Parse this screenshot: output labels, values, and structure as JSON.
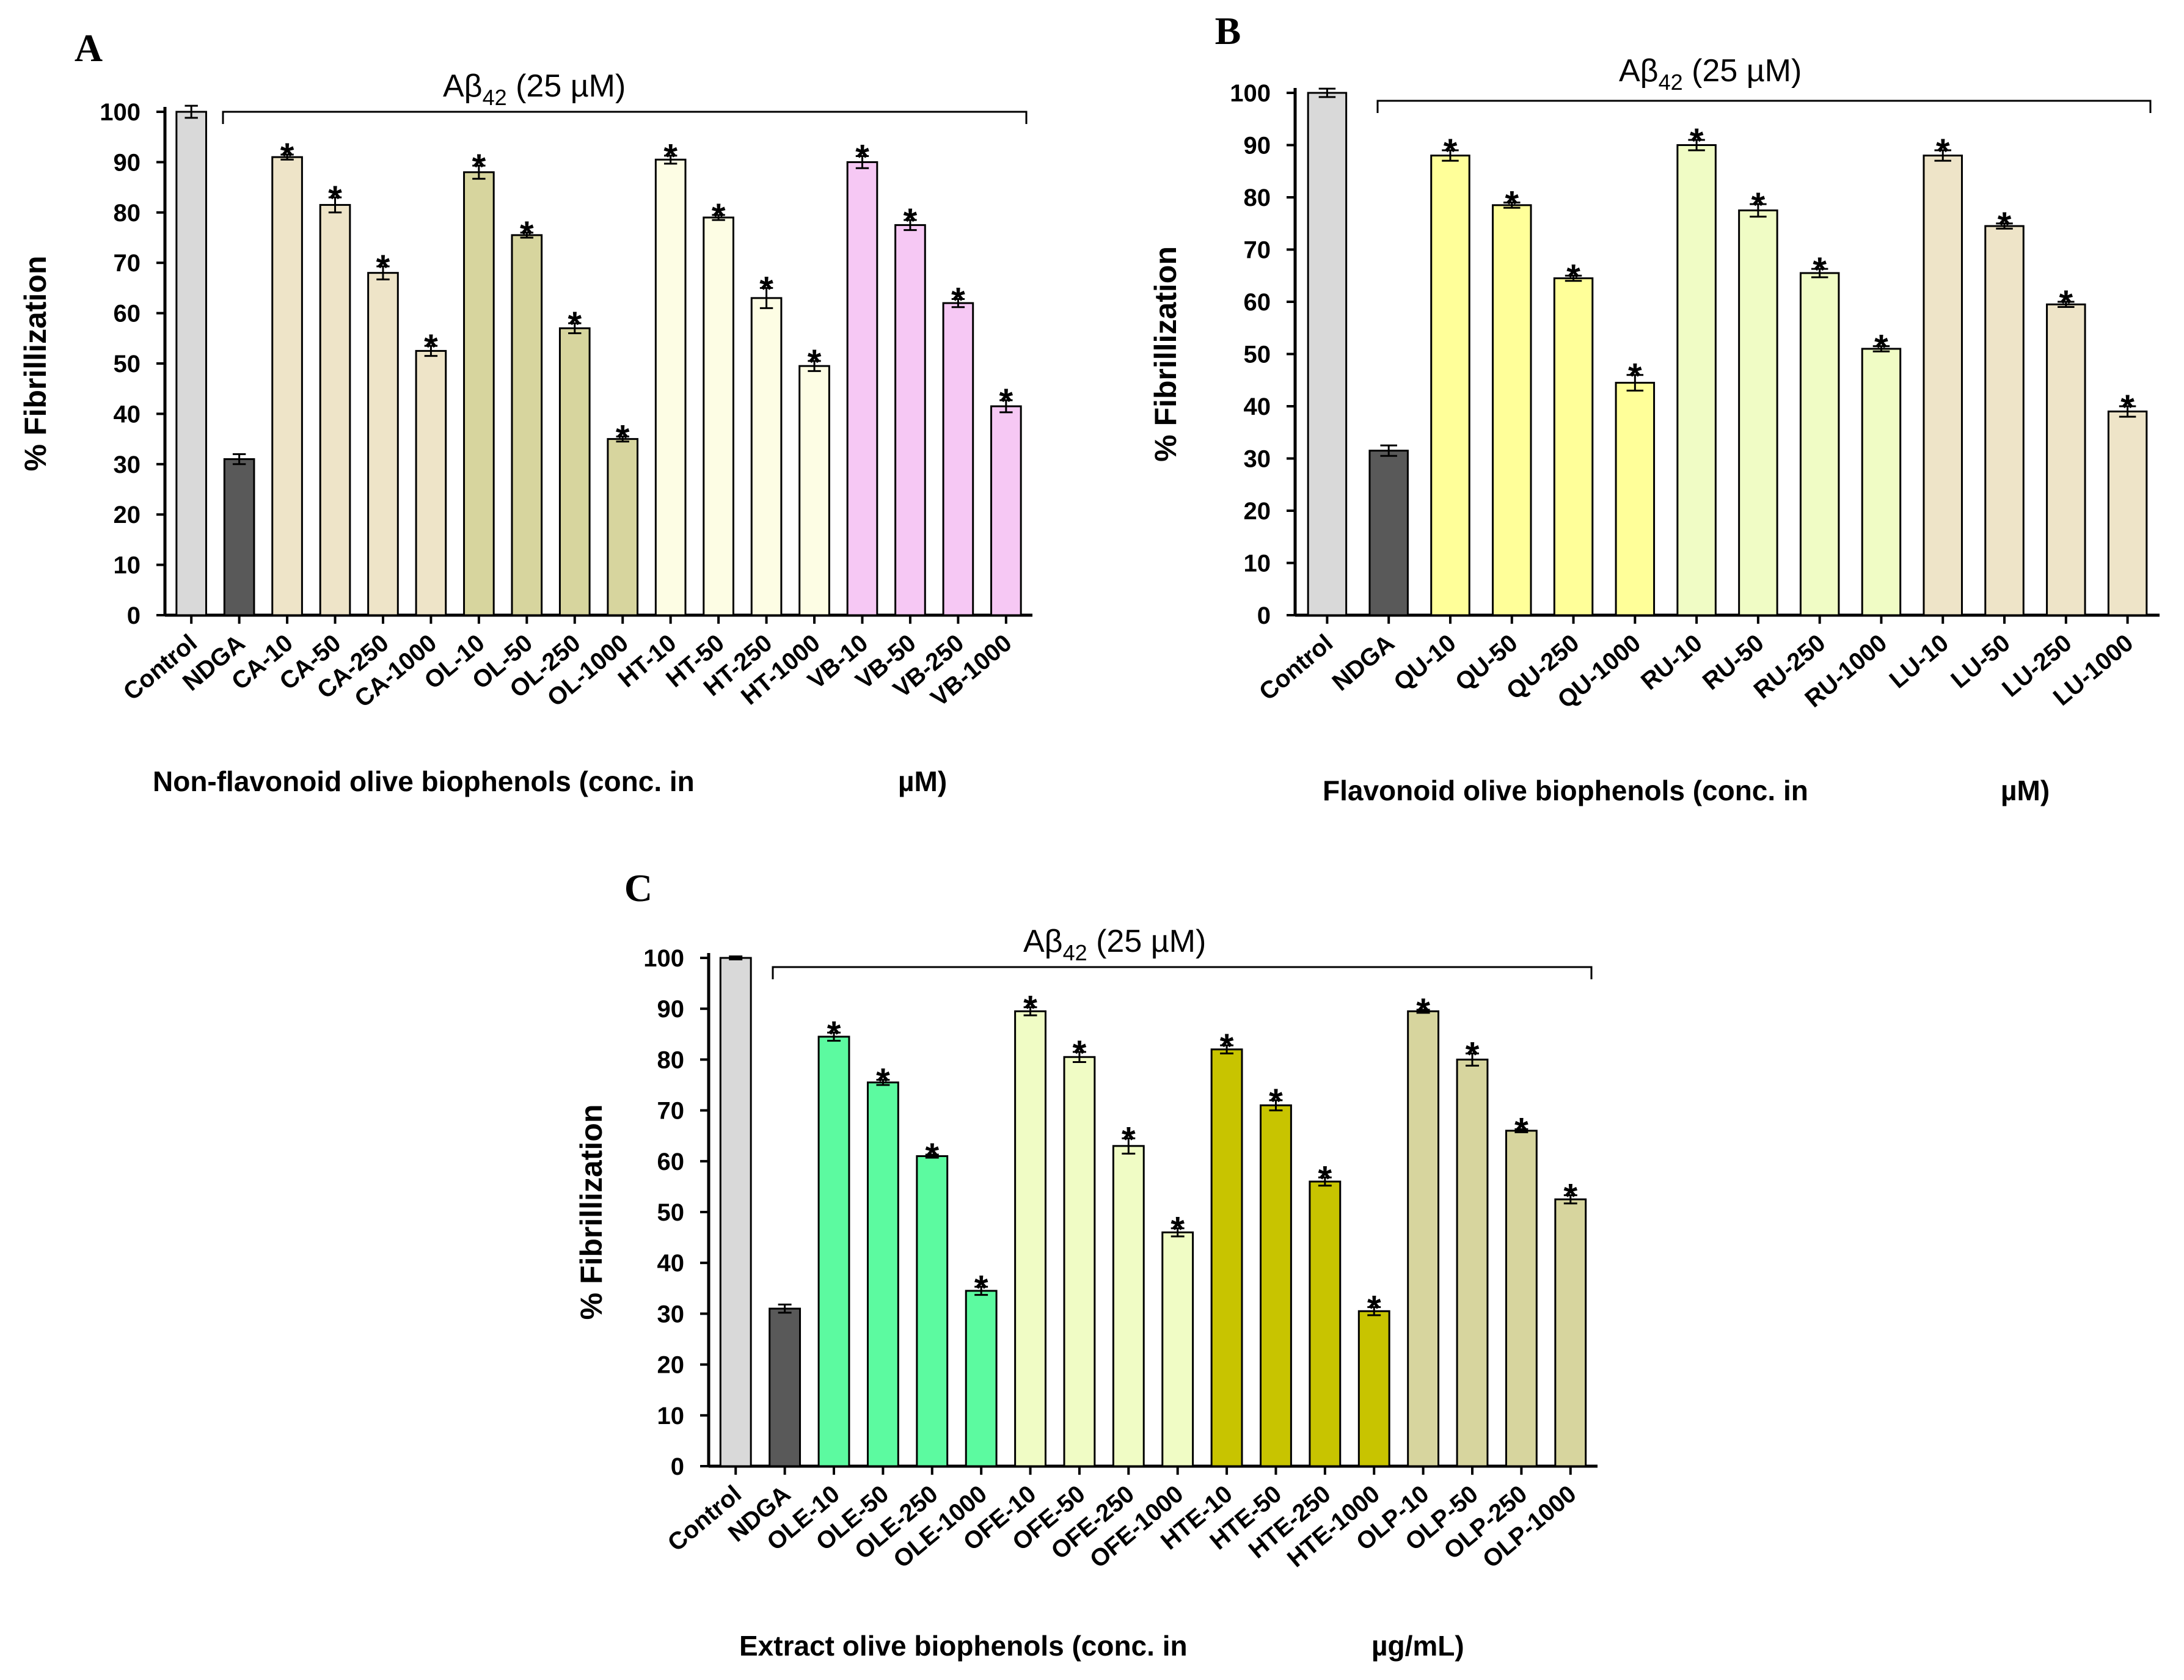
{
  "chart_data": [
    {
      "type": "bar",
      "panel": "A",
      "title": "",
      "bracket_label": "Aβ",
      "bracket_sub": "42",
      "bracket_tail": " (25  µM)",
      "xlabel": "Non-flavonoid olive biophenols (conc. in",
      "xlabel_unit": "µM)",
      "ylabel": "% Fibrillization",
      "ylim": [
        0,
        100
      ],
      "yticks": [
        "0",
        "10",
        "20",
        "30",
        "40",
        "50",
        "60",
        "70",
        "80",
        "90",
        "100"
      ],
      "categories": [
        "Control",
        "NDGA",
        "CA-10",
        "CA-50",
        "CA-250",
        "CA-1000",
        "OL-10",
        "OL-50",
        "OL-250",
        "OL-1000",
        "HT-10",
        "HT-50",
        "HT-250",
        "HT-1000",
        "VB-10",
        "VB-50",
        "VB-250",
        "VB-1000"
      ],
      "values": [
        100,
        31,
        91,
        81.5,
        68,
        52.5,
        88,
        75.5,
        57,
        35,
        90.5,
        79,
        63,
        49.5,
        90,
        77.5,
        62,
        41.5
      ],
      "errors": [
        1.2,
        1,
        0.5,
        1.5,
        1.3,
        1,
        1.3,
        0.5,
        1,
        0.5,
        0.8,
        0.5,
        2,
        1,
        1.2,
        1,
        0.8,
        1.2
      ],
      "significant": [
        false,
        false,
        true,
        true,
        true,
        true,
        true,
        true,
        true,
        true,
        true,
        true,
        true,
        true,
        true,
        true,
        true,
        true
      ],
      "colors": [
        "#d9d9d9",
        "#595959",
        "#eee4c8",
        "#eee4c8",
        "#eee4c8",
        "#eee4c8",
        "#d7d59e",
        "#d7d59e",
        "#d7d59e",
        "#d7d59e",
        "#fdfde4",
        "#fdfde4",
        "#fdfde4",
        "#fdfde4",
        "#f6c8f4",
        "#f6c8f4",
        "#f6c8f4",
        "#f6c8f4"
      ]
    },
    {
      "type": "bar",
      "panel": "B",
      "title": "",
      "bracket_label": "Aβ",
      "bracket_sub": "42",
      "bracket_tail": " (25  µM)",
      "xlabel": "Flavonoid olive biophenols (conc. in",
      "xlabel_unit": "µM)",
      "ylabel": "% Fibrillization",
      "ylim": [
        0,
        100
      ],
      "yticks": [
        "0",
        "10",
        "20",
        "30",
        "40",
        "50",
        "60",
        "70",
        "80",
        "90",
        "100"
      ],
      "categories": [
        "Control",
        "NDGA",
        "QU-10",
        "QU-50",
        "QU-250",
        "QU-1000",
        "RU-10",
        "RU-50",
        "RU-250",
        "RU-1000",
        "LU-10",
        "LU-50",
        "LU-250",
        "LU-1000"
      ],
      "values": [
        100,
        31.5,
        88,
        78.5,
        64.5,
        44.5,
        90,
        77.5,
        65.5,
        51,
        88,
        74.5,
        59.5,
        39
      ],
      "errors": [
        0.8,
        1,
        1,
        0.5,
        0.5,
        1.5,
        1,
        1.2,
        0.8,
        0.5,
        1,
        0.5,
        0.5,
        1
      ],
      "significant": [
        false,
        false,
        true,
        true,
        true,
        true,
        true,
        true,
        true,
        true,
        true,
        true,
        true,
        true
      ],
      "colors": [
        "#d9d9d9",
        "#595959",
        "#ffff99",
        "#ffff99",
        "#ffff99",
        "#ffff99",
        "#f0fcc5",
        "#f0fcc5",
        "#f0fcc5",
        "#f0fcc5",
        "#eee4c8",
        "#eee4c8",
        "#eee4c8",
        "#eee4c8"
      ]
    },
    {
      "type": "bar",
      "panel": "C",
      "title": "",
      "bracket_label": "Aβ",
      "bracket_sub": "42",
      "bracket_tail": " (25  µM)",
      "xlabel": "Extract olive biophenols (conc. in",
      "xlabel_unit": "µg/mL)",
      "ylabel": "% Fibrillization",
      "ylim": [
        0,
        100
      ],
      "yticks": [
        "0",
        "10",
        "20",
        "30",
        "40",
        "50",
        "60",
        "70",
        "80",
        "90",
        "100"
      ],
      "categories": [
        "Control",
        "NDGA",
        "OLE-10",
        "OLE-50",
        "OLE-250",
        "OLE-1000",
        "OFE-10",
        "OFE-50",
        "OFE-250",
        "OFE-1000",
        "HTE-10",
        "HTE-50",
        "HTE-250",
        "HTE-1000",
        "OLP-10",
        "OLP-50",
        "OLP-250",
        "OLP-1000"
      ],
      "values": [
        100,
        31,
        84.5,
        75.5,
        61,
        34.5,
        89.5,
        80.5,
        63,
        46,
        82,
        71,
        56,
        30.5,
        89.5,
        80,
        66,
        52.5
      ],
      "errors": [
        0.3,
        0.8,
        0.8,
        0.5,
        0.3,
        0.8,
        0.8,
        1,
        1.5,
        0.8,
        0.8,
        1,
        0.8,
        0.8,
        0.3,
        1.2,
        0.3,
        0.8
      ],
      "significant": [
        false,
        false,
        true,
        true,
        true,
        true,
        true,
        true,
        true,
        true,
        true,
        true,
        true,
        true,
        true,
        true,
        true,
        true
      ],
      "colors": [
        "#d9d9d9",
        "#595959",
        "#5cfaa0",
        "#5cfaa0",
        "#5cfaa0",
        "#5cfaa0",
        "#f0fcc5",
        "#f0fcc5",
        "#f0fcc5",
        "#f0fcc5",
        "#c8c400",
        "#c8c400",
        "#c8c400",
        "#c8c400",
        "#d7d59e",
        "#d7d59e",
        "#d7d59e",
        "#d7d59e"
      ]
    }
  ],
  "star_symbol": "*"
}
